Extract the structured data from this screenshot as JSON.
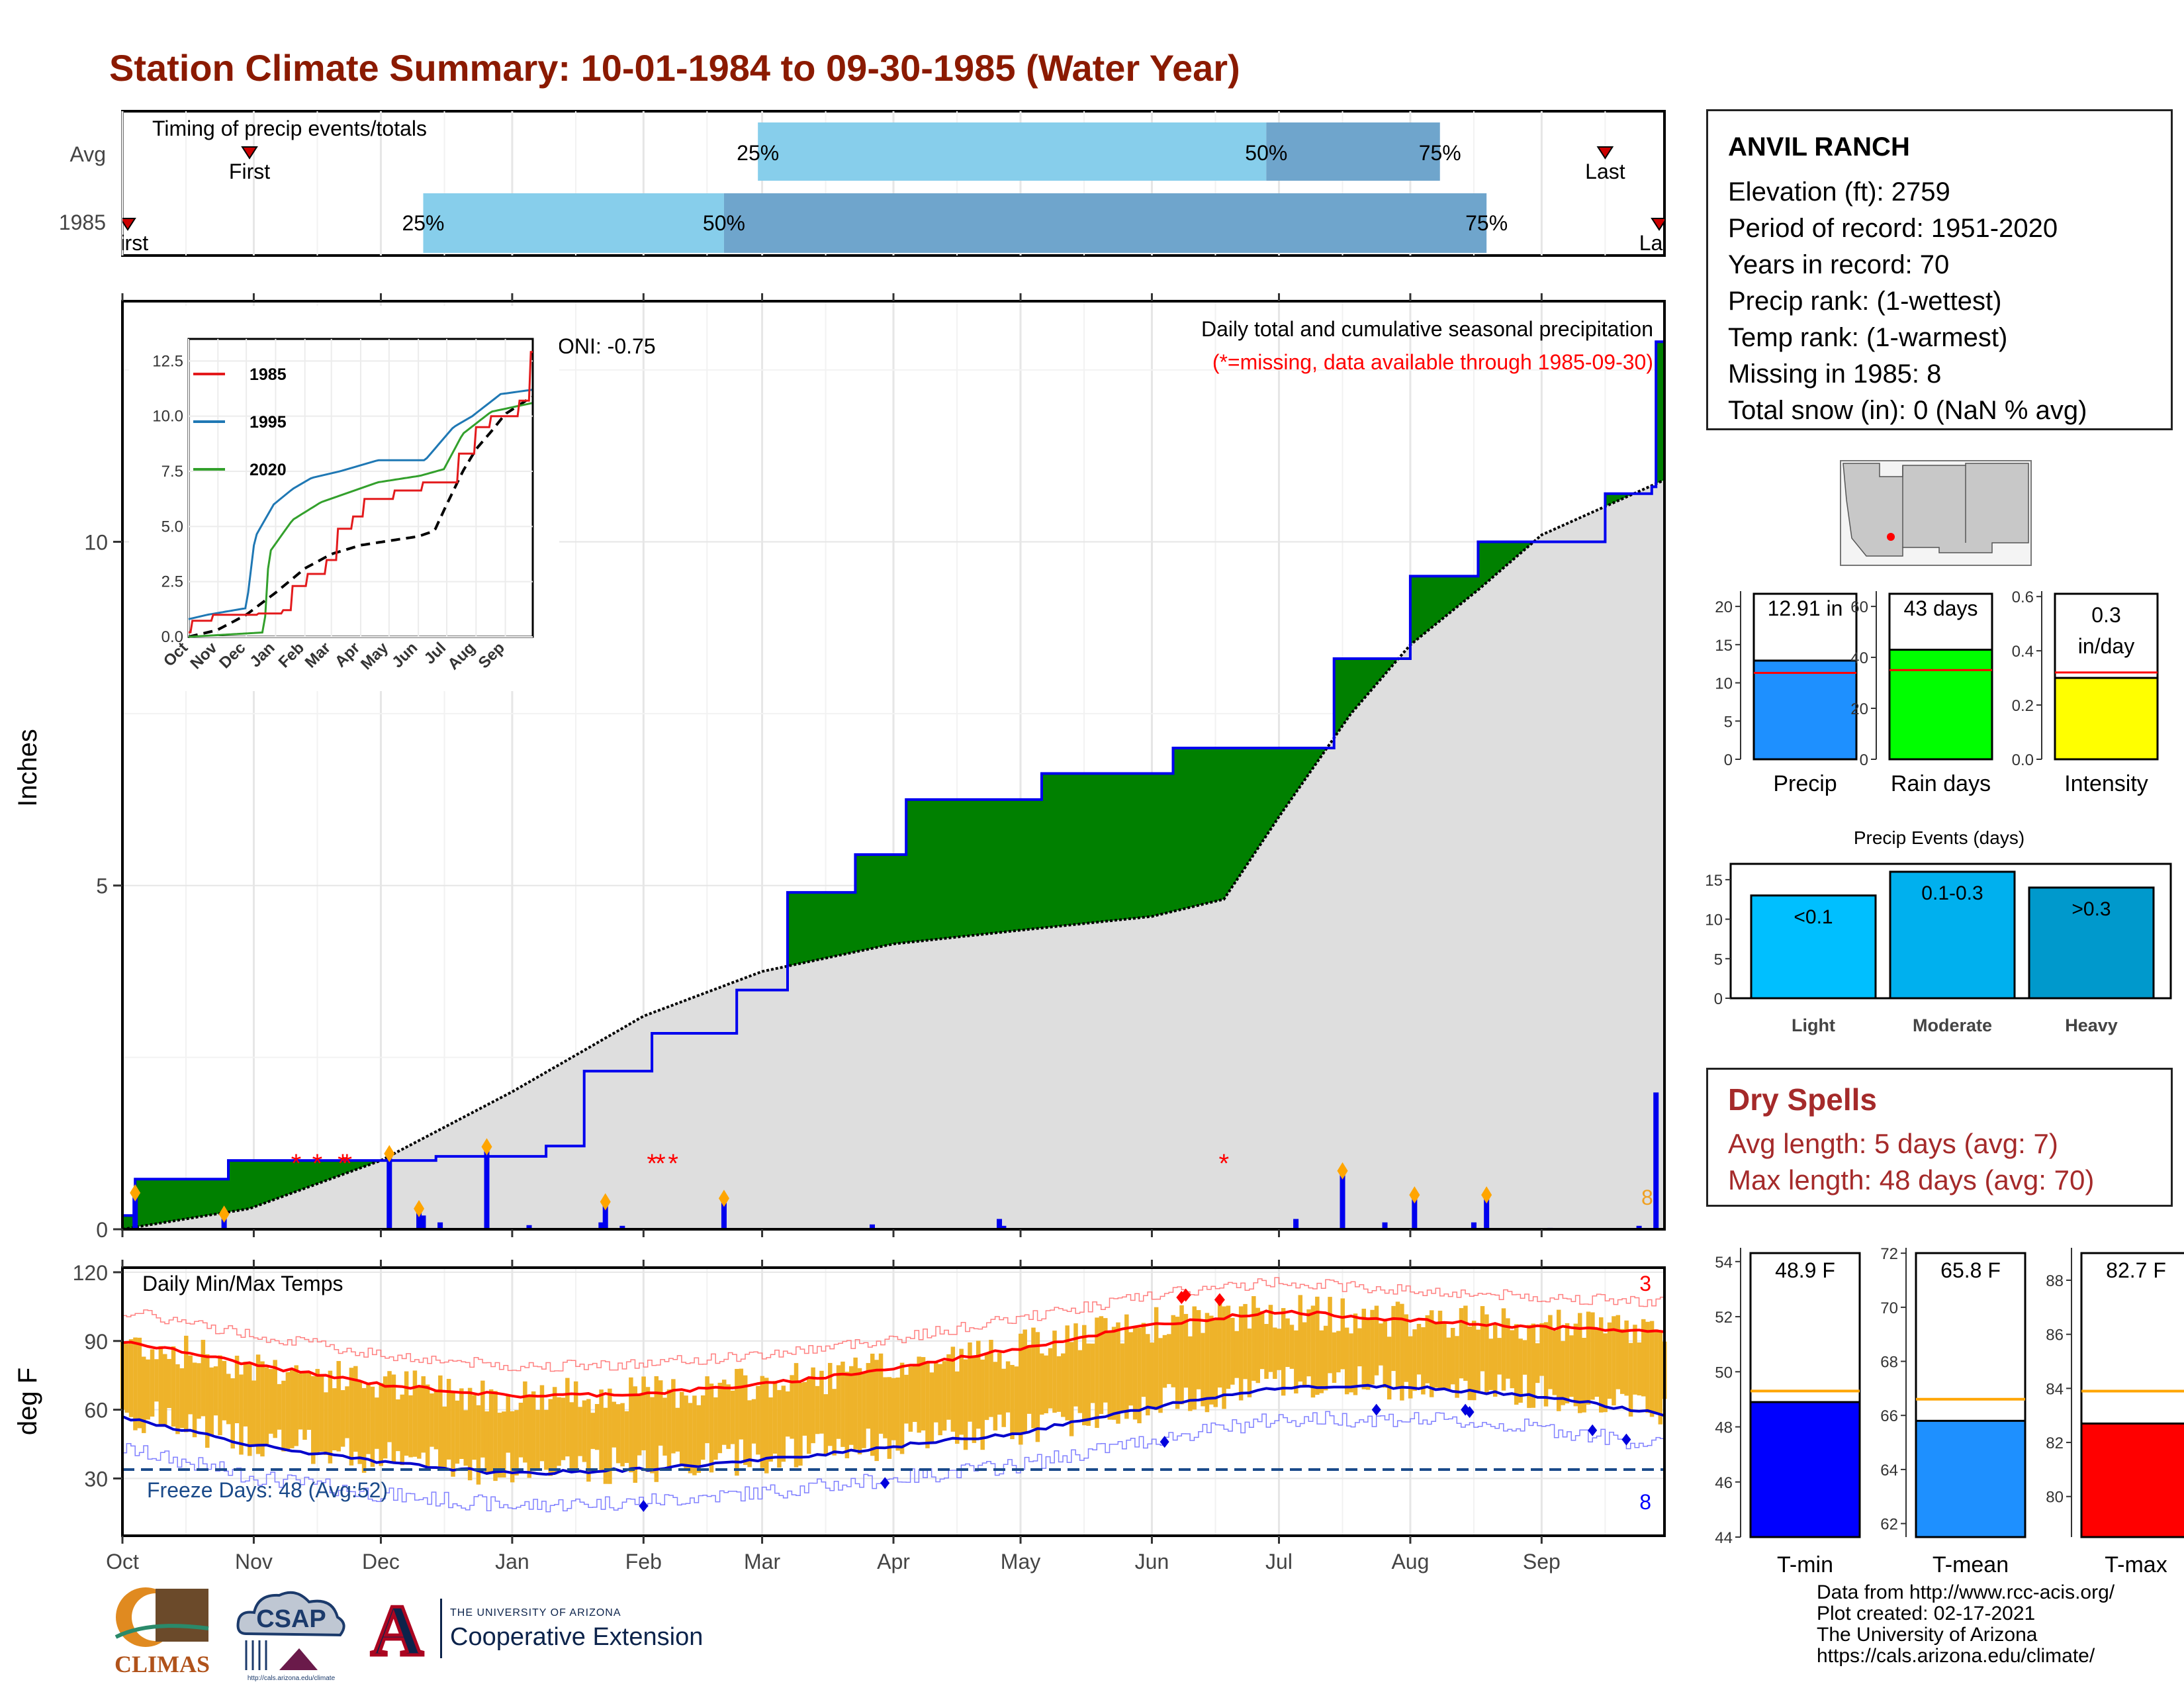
{
  "title": "Station Climate Summary: 10-01-1984 to 09-30-1985 (Water Year)",
  "colors": {
    "title": "#8b1a00",
    "green_fill": "#008000",
    "blue_line": "#0000ee",
    "grey_fill": "#dedede",
    "light_blue": "#87ceeb",
    "mid_blue": "#6fa5cc",
    "orange": "#f0b020",
    "red": "#ff0000"
  },
  "timing": {
    "label": "Timing of precip events/totals",
    "rows": [
      {
        "name": "Avg",
        "first": "First",
        "last": "Last",
        "p25": "25%",
        "p50": "50%",
        "p75": "75%",
        "first_day": 30,
        "p25_day": 150,
        "p50_day": 270,
        "p75_day": 311,
        "last_day": 350
      },
      {
        "name": "1985",
        "first": "First",
        "last": "Last",
        "p25": "25%",
        "p50": "50%",
        "p75": "75%",
        "first_day": 0,
        "p25_day": 71,
        "p50_day": 142,
        "p75_day": 322,
        "last_day": 364
      }
    ]
  },
  "precip_panel": {
    "header": "Daily total and cumulative seasonal precipitation",
    "missing_note": "(*=missing, data available through 1985-09-30)",
    "oni": "ONI: -0.75",
    "ylabel": "Inches",
    "yticks": [
      "0",
      "5",
      "10"
    ],
    "count_label": "8"
  },
  "inset": {
    "legend": [
      "1985",
      "1995",
      "2020"
    ],
    "yticks": [
      "0.0",
      "2.5",
      "5.0",
      "7.5",
      "10.0",
      "12.5"
    ],
    "xticks": [
      "Oct",
      "Nov",
      "Dec",
      "Jan",
      "Feb",
      "Mar",
      "Apr",
      "May",
      "Jun",
      "Jul",
      "Aug",
      "Sep"
    ]
  },
  "temp_panel": {
    "label": "Daily Min/Max Temps",
    "ylabel": "deg F",
    "yticks": [
      "30",
      "60",
      "90",
      "120"
    ],
    "freeze": "Freeze Days: 48 (Avg:52)",
    "max_count": "3",
    "min_count": "8"
  },
  "month_labels": [
    "Oct",
    "Nov",
    "Dec",
    "Jan",
    "Feb",
    "Mar",
    "Apr",
    "May",
    "Jun",
    "Jul",
    "Aug",
    "Sep"
  ],
  "station": {
    "name": "ANVIL RANCH",
    "lines": [
      "Elevation (ft): 2759",
      "Period of record: 1951-2020",
      "Years in record: 70",
      "Precip rank:  (1-wettest)",
      "Temp rank:  (1-warmest)",
      "Missing in 1985: 8",
      "Total snow (in): 0 (NaN % avg)"
    ]
  },
  "mini_bars": [
    {
      "label": "Precip",
      "value_text": "12.91 in",
      "value": 12.91,
      "avg": 11.3,
      "yticks": [
        "0",
        "5",
        "10",
        "15",
        "20"
      ],
      "ymax": 22,
      "color": "#1e90ff"
    },
    {
      "label": "Rain days",
      "value_text": "43 days",
      "value": 43,
      "avg": 35,
      "yticks": [
        "0",
        "20",
        "40",
        "60"
      ],
      "ymax": 66,
      "color": "#00ff00"
    },
    {
      "label": "Intensity",
      "value_text": "0.3 in/day",
      "value_line1": "0.3",
      "value_line2": "in/day",
      "value": 0.3,
      "avg": 0.32,
      "yticks": [
        "0.0",
        "0.2",
        "0.4",
        "0.6"
      ],
      "ymax": 0.62,
      "color": "#ffff00"
    }
  ],
  "events": {
    "title": "Precip Events (days)",
    "yticks": [
      "0",
      "5",
      "10",
      "15"
    ],
    "bars": [
      {
        "label": "Light",
        "range": "<0.1",
        "value": 13,
        "color": "#00bfff"
      },
      {
        "label": "Moderate",
        "range": "0.1-0.3",
        "value": 16,
        "color": "#00b0ee"
      },
      {
        "label": "Heavy",
        "range": ">0.3",
        "value": 14,
        "color": "#0099cc"
      }
    ]
  },
  "dry_spells": {
    "title": "Dry Spells",
    "avg": "Avg length: 5 days (avg: 7)",
    "max": "Max length: 48 days (avg: 70)"
  },
  "temp_bars": [
    {
      "label": "T-min",
      "value_text": "48.9 F",
      "value": 48.9,
      "avg": 49.3,
      "ymin": 44,
      "ymax": 54.5,
      "yticks": [
        "44",
        "46",
        "48",
        "50",
        "52",
        "54"
      ],
      "color": "#0000ff"
    },
    {
      "label": "T-mean",
      "value_text": "65.8 F",
      "value": 65.8,
      "avg": 66.6,
      "ymin": 61.5,
      "ymax": 72.2,
      "yticks": [
        "62",
        "64",
        "66",
        "68",
        "70",
        "72"
      ],
      "color": "#1e90ff"
    },
    {
      "label": "T-max",
      "value_text": "82.7 F",
      "value": 82.7,
      "avg": 83.9,
      "ymin": 78.5,
      "ymax": 89.2,
      "yticks": [
        "80",
        "82",
        "84",
        "86",
        "88"
      ],
      "color": "#ff0000"
    }
  ],
  "credits": [
    "Data from http://www.rcc-acis.org/",
    "Plot created: 02-17-2021",
    "The University of Arizona",
    "https://cals.arizona.edu/climate/"
  ],
  "logos": {
    "climas": "CLIMAS",
    "csap": "CSAP",
    "csap_url": "http://cals.arizona.edu/climate",
    "ua_small": "THE UNIVERSITY OF ARIZONA",
    "ua_big": "Cooperative Extension",
    "ua_letter": "A"
  },
  "chart_data": {
    "type": "area",
    "title": "Station Climate Summary: 10-01-1984 to 09-30-1985 (Water Year)",
    "ylabel": "Inches",
    "ylim": [
      0,
      13.5
    ],
    "x_unit": "day of water year",
    "series": [
      {
        "name": "1985",
        "x": [
          0,
          3,
          25,
          74,
          100,
          109,
          125,
          145,
          157,
          173,
          185,
          217,
          248,
          286,
          304,
          320,
          350,
          361,
          362,
          364
        ],
        "y": [
          0.2,
          0.73,
          1.0,
          1.06,
          1.21,
          2.3,
          2.85,
          3.48,
          4.9,
          5.45,
          6.25,
          6.63,
          7.0,
          8.3,
          9.5,
          10.0,
          10.7,
          10.8,
          12.91,
          12.91
        ]
      },
      {
        "name": "Avg",
        "x": [
          0,
          30,
          61,
          92,
          123,
          151,
          182,
          212,
          243,
          260,
          273,
          290,
          304,
          320,
          335,
          364
        ],
        "y": [
          0.0,
          0.3,
          1.0,
          2.0,
          3.1,
          3.75,
          4.15,
          4.35,
          4.55,
          4.8,
          6.0,
          7.5,
          8.5,
          9.3,
          10.1,
          10.9
        ]
      }
    ],
    "daily_precip": [
      {
        "x": 3,
        "y": 0.53
      },
      {
        "x": 24,
        "y": 0.22
      },
      {
        "x": 63,
        "y": 1.1
      },
      {
        "x": 70,
        "y": 0.3
      },
      {
        "x": 71,
        "y": 0.2
      },
      {
        "x": 75,
        "y": 0.1
      },
      {
        "x": 86,
        "y": 1.2
      },
      {
        "x": 96,
        "y": 0.06
      },
      {
        "x": 113,
        "y": 0.1
      },
      {
        "x": 114,
        "y": 0.4
      },
      {
        "x": 118,
        "y": 0.05
      },
      {
        "x": 142,
        "y": 0.45
      },
      {
        "x": 177,
        "y": 0.07
      },
      {
        "x": 207,
        "y": 0.15
      },
      {
        "x": 208,
        "y": 0.05
      },
      {
        "x": 277,
        "y": 0.15
      },
      {
        "x": 288,
        "y": 0.85
      },
      {
        "x": 298,
        "y": 0.1
      },
      {
        "x": 305,
        "y": 0.5
      },
      {
        "x": 319,
        "y": 0.1
      },
      {
        "x": 322,
        "y": 0.5
      },
      {
        "x": 337,
        "y": 0.02
      },
      {
        "x": 358,
        "y": 0.05
      },
      {
        "x": 362,
        "y": 1.99
      }
    ],
    "temp_avg_max": {
      "x": [
        0,
        30,
        61,
        92,
        123,
        151,
        182,
        212,
        243,
        273,
        304,
        335,
        364
      ],
      "y": [
        90,
        80,
        71,
        66,
        67,
        71,
        78,
        87,
        97,
        103,
        99,
        96,
        94
      ]
    },
    "temp_avg_min": {
      "x": [
        0,
        30,
        61,
        92,
        123,
        151,
        182,
        212,
        243,
        273,
        304,
        335,
        364
      ],
      "y": [
        57,
        45,
        37,
        32,
        34,
        38,
        44,
        50,
        61,
        70,
        70,
        66,
        58
      ]
    }
  }
}
